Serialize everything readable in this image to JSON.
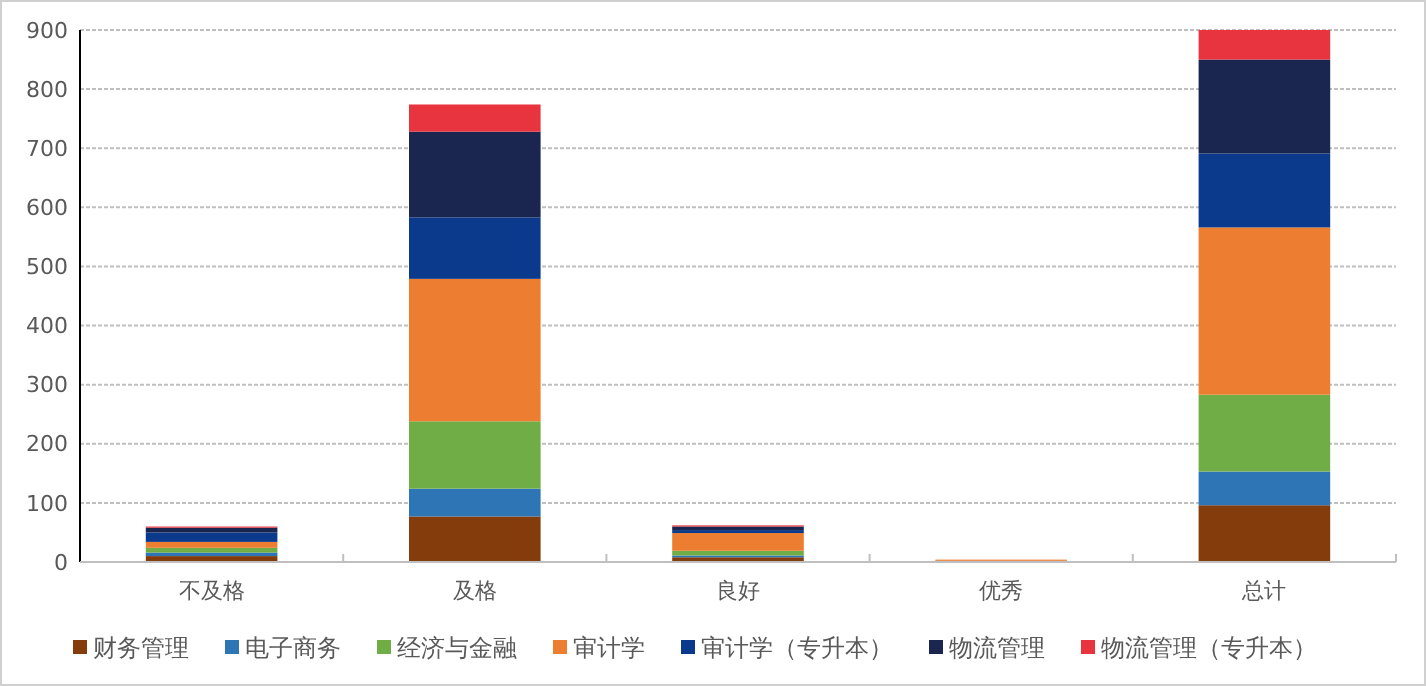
{
  "chart_data": {
    "type": "bar",
    "stacked": true,
    "categories": [
      "不及格",
      "及格",
      "良好",
      "优秀",
      "总计"
    ],
    "series": [
      {
        "name": "财务管理",
        "color": "#843c0c",
        "values": [
          10,
          77,
          8,
          1,
          96
        ]
      },
      {
        "name": "电子商务",
        "color": "#2e75b6",
        "values": [
          6,
          47,
          3,
          1,
          57
        ]
      },
      {
        "name": "经济与金融",
        "color": "#70ad47",
        "values": [
          8,
          114,
          8,
          0,
          130
        ]
      },
      {
        "name": "审计学",
        "color": "#ed7d31",
        "values": [
          10,
          241,
          30,
          2,
          283
        ]
      },
      {
        "name": "审计学（专升本）",
        "color": "#0b3a8c",
        "values": [
          16,
          104,
          5,
          0,
          125
        ]
      },
      {
        "name": "物流管理",
        "color": "#1a2550",
        "values": [
          8,
          145,
          6,
          0,
          159
        ]
      },
      {
        "name": "物流管理（专升本）",
        "color": "#e8343f",
        "values": [
          2,
          46,
          2,
          0,
          50
        ]
      }
    ],
    "ylim": [
      0,
      900
    ],
    "yticks": [
      0,
      100,
      200,
      300,
      400,
      500,
      600,
      700,
      800,
      900
    ],
    "grid": "y",
    "legend": "bottom"
  }
}
